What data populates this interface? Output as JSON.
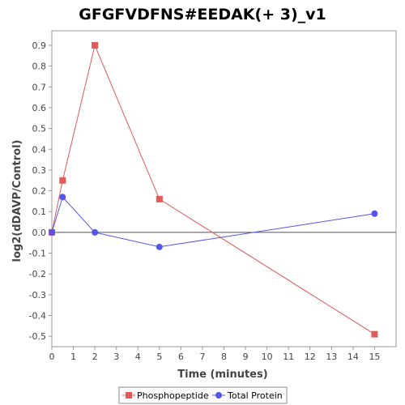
{
  "chart_data": {
    "type": "line",
    "title": "GFGFVDFNS#EEDAK(+ 3)_v1",
    "xlabel": "Time (minutes)",
    "ylabel": "log2(dDAVP/Control)",
    "xlim": [
      0,
      16
    ],
    "ylim": [
      -0.55,
      0.97
    ],
    "x_ticks": [
      0,
      1,
      2,
      3,
      4,
      5,
      6,
      7,
      8,
      9,
      10,
      11,
      12,
      13,
      14,
      15
    ],
    "y_ticks": [
      0.9,
      0.8,
      0.7,
      0.6,
      0.5,
      0.4,
      0.3,
      0.2,
      0.1,
      0.0,
      -0.1,
      -0.2,
      -0.3,
      -0.4,
      -0.5
    ],
    "y_tick_labels": [
      "0.9",
      "0.8",
      "0.7",
      "0.6",
      "0.5",
      "0.4",
      "0.3",
      "0.2",
      "0.1",
      "0.0",
      "-0.1",
      "-0.2",
      "-0.3",
      "-0.4",
      "-0.5"
    ],
    "grid": false,
    "zero_line": true,
    "legend_position": "bottom",
    "series": [
      {
        "name": "Phosphopeptide",
        "color": "#e05a5a",
        "marker": "square",
        "x": [
          0,
          0.5,
          2,
          5,
          15
        ],
        "y": [
          0.0,
          0.25,
          0.9,
          0.16,
          -0.49
        ]
      },
      {
        "name": "Total Protein",
        "color": "#5555ee",
        "marker": "circle",
        "x": [
          0,
          0.5,
          2,
          5,
          15
        ],
        "y": [
          0.0,
          0.17,
          0.0,
          -0.07,
          0.09
        ]
      }
    ]
  }
}
